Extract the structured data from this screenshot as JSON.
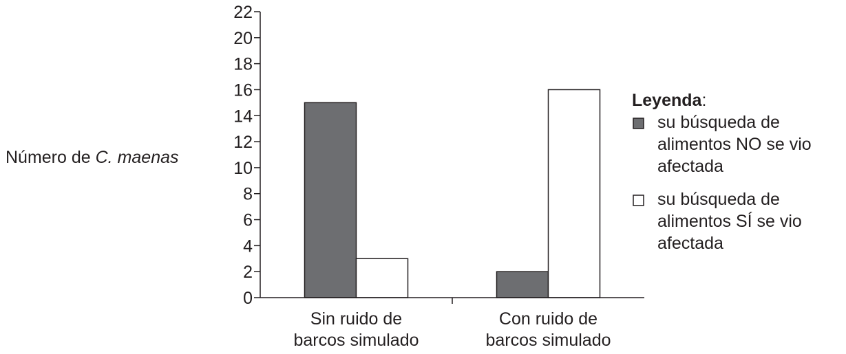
{
  "chart_data": {
    "type": "bar",
    "title": "",
    "xlabel": "",
    "ylabel": {
      "prefix": "Número de ",
      "species": "C. maenas"
    },
    "ylim": [
      0,
      22
    ],
    "yticks": [
      0,
      2,
      4,
      6,
      8,
      10,
      12,
      14,
      16,
      18,
      20,
      22
    ],
    "grid": false,
    "categories": [
      [
        "Sin ruido de",
        "barcos simulado"
      ],
      [
        "Con ruido de",
        "barcos simulado"
      ]
    ],
    "series": [
      {
        "name": [
          "su búsqueda de",
          "alimentos NO se vio",
          "afectada"
        ],
        "values": [
          15,
          2
        ],
        "color": "#6d6e71"
      },
      {
        "name": [
          "su búsqueda de",
          "alimentos SÍ se vio",
          "afectada"
        ],
        "values": [
          3,
          16
        ],
        "color": "#ffffff"
      }
    ],
    "legend": {
      "title": "Leyenda",
      "title_suffix": ":",
      "position": "right"
    }
  }
}
